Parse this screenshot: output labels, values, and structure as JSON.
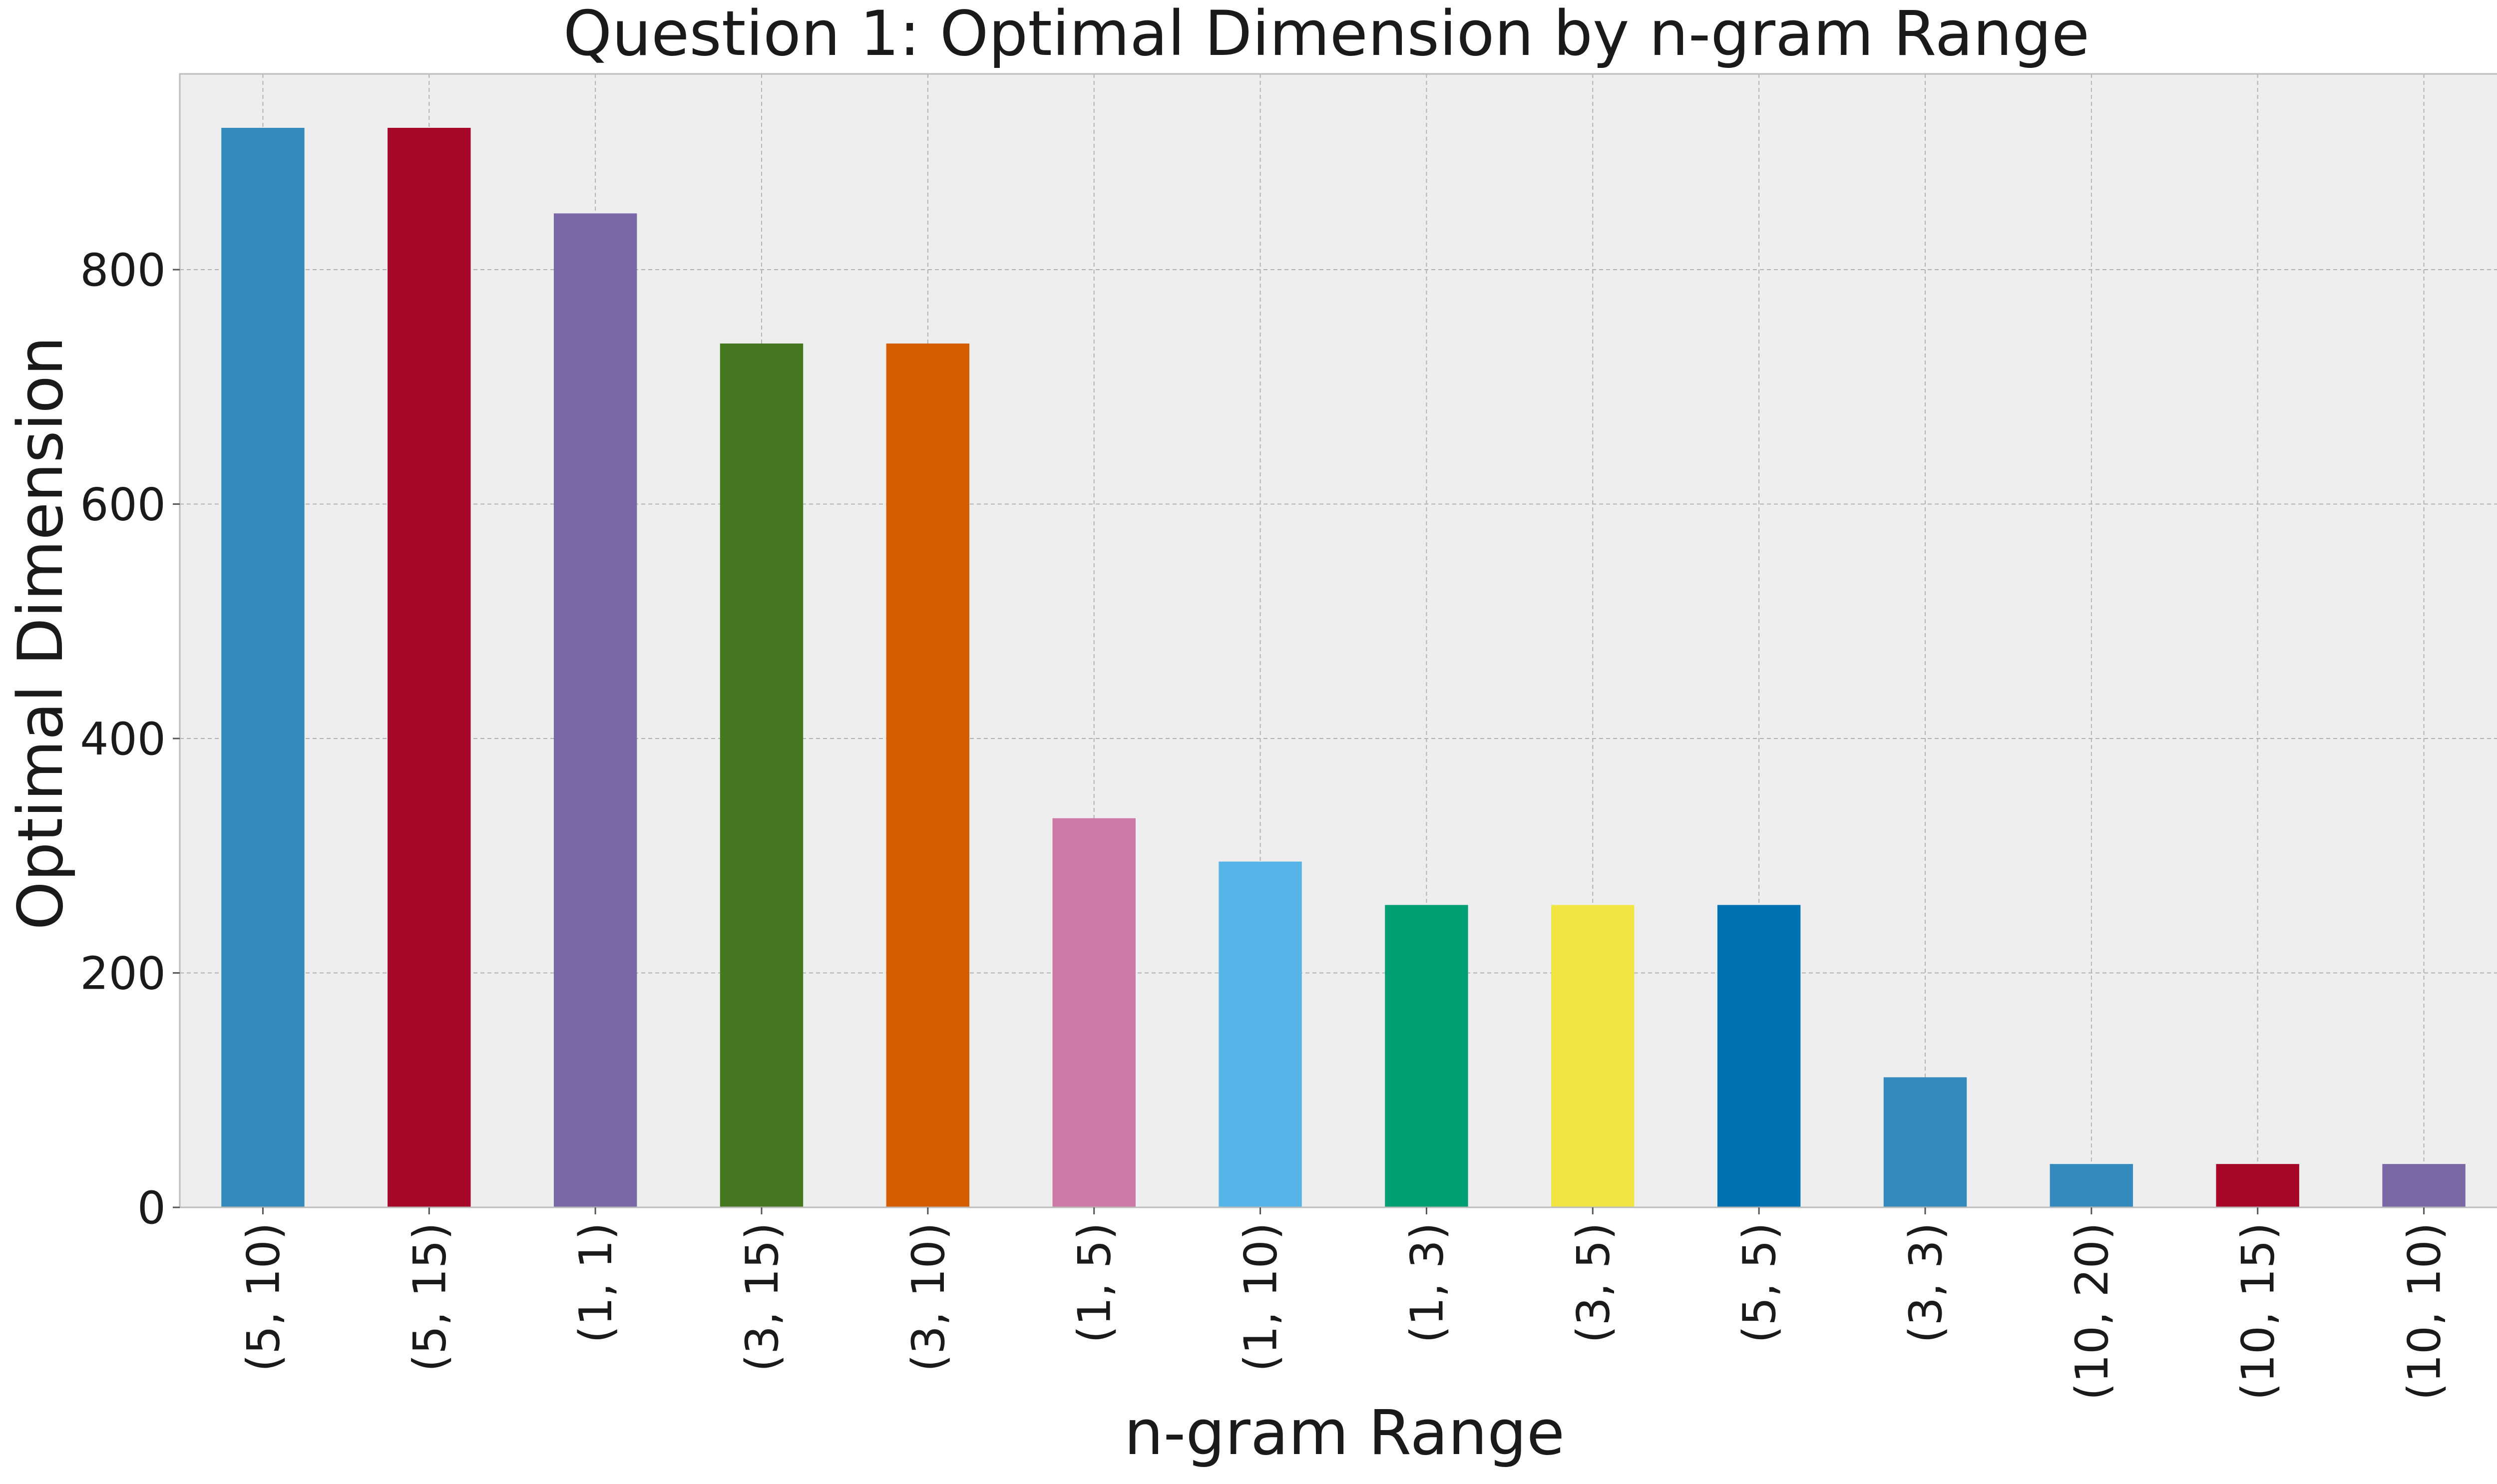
{
  "chart_data": {
    "type": "bar",
    "title": "Question 1: Optimal Dimension by n-gram Range",
    "xlabel": "n-gram Range",
    "ylabel": "Optimal Dimension",
    "categories": [
      "(5, 10)",
      "(5, 15)",
      "(1, 1)",
      "(3, 15)",
      "(3, 10)",
      "(1, 5)",
      "(1, 10)",
      "(1, 3)",
      "(3, 5)",
      "(5, 5)",
      "(3, 3)",
      "(10, 20)",
      "(10, 15)",
      "(10, 10)"
    ],
    "values": [
      921,
      921,
      848,
      737,
      737,
      332,
      295,
      258,
      258,
      258,
      111,
      37,
      37,
      37
    ],
    "colors": [
      "#348ABD",
      "#A60628",
      "#7A68A6",
      "#467821",
      "#D55E00",
      "#CC79A7",
      "#56B4E9",
      "#009E73",
      "#F0E442",
      "#0072B2",
      "#348ABD",
      "#348ABD",
      "#A60628",
      "#7A68A6"
    ],
    "ylim": [
      0,
      967
    ],
    "yticks": [
      0,
      200,
      400,
      600,
      800
    ],
    "grid": true,
    "legend": "none",
    "background": "#EEEEEE"
  }
}
